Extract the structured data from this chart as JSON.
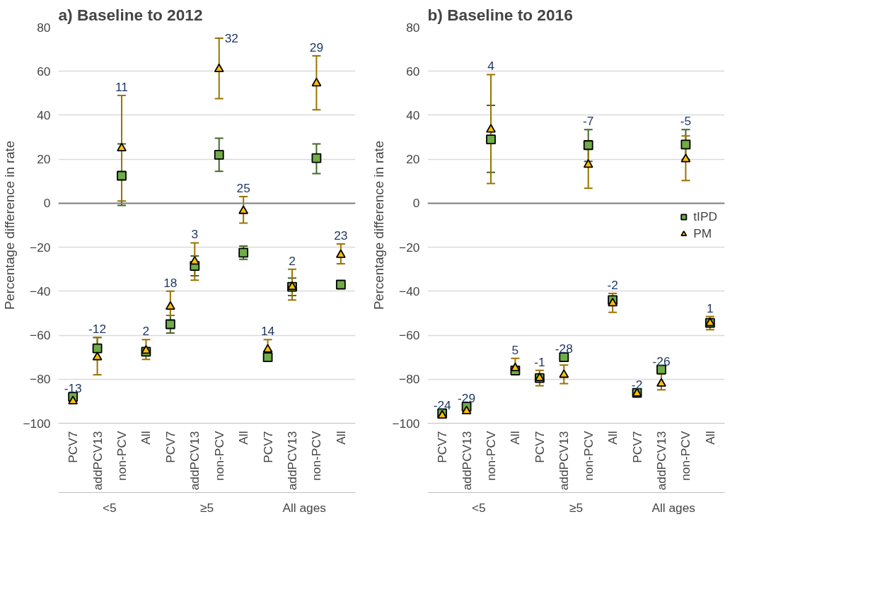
{
  "chart_data": [
    {
      "type": "scatter",
      "title": "a) Baseline to 2012",
      "ylabel": "Percentage difference in rate",
      "categories": [
        "PCV7",
        "addPCV13",
        "non-PCV",
        "All",
        "PCV7",
        "addPCV13",
        "non-PCV",
        "All",
        "PCV7",
        "addPCV13",
        "non-PCV",
        "All"
      ],
      "series": [
        {
          "color": "#70ad47",
          "marker": "square",
          "values": [
            -88,
            -66,
            12.5,
            -67.5,
            -55,
            -28.5,
            22,
            -22.5,
            -70,
            -38,
            20.5,
            -37
          ],
          "errors": [
            null,
            [
              -71,
              -61
            ],
            [
              -1,
              27
            ],
            null,
            [
              -59,
              -51
            ],
            [
              -33,
              -24
            ],
            [
              14.5,
              29.5
            ],
            [
              -25.5,
              -19.5
            ],
            null,
            [
              -42,
              -34
            ],
            [
              13.5,
              27
            ],
            null
          ]
        },
        {
          "color": "#ffc000",
          "marker": "triangle",
          "values": [
            -90,
            -70,
            25,
            -67,
            -47,
            -26.5,
            61,
            -3.5,
            -66.5,
            -38,
            54.5,
            -23.5
          ],
          "errors": [
            null,
            [
              -78,
              -61
            ],
            [
              1,
              49
            ],
            [
              -71,
              -62
            ],
            [
              -51,
              -40
            ],
            [
              -35,
              -18
            ],
            [
              47.5,
              75
            ],
            [
              -9,
              3
            ],
            [
              -68,
              -62
            ],
            [
              -44,
              -30
            ],
            [
              42.5,
              67
            ],
            [
              -27.5,
              -18.5
            ]
          ]
        }
      ],
      "annotations": [
        "-13",
        "-12",
        "11",
        "2",
        "18",
        "3",
        "32",
        "25",
        "14",
        "2",
        "29",
        "23",
        "<5",
        "≥5",
        "All ages"
      ],
      "ylim": [
        -100,
        80
      ],
      "yticks": [
        -100,
        -80,
        -60,
        -40,
        -20,
        0,
        20,
        40,
        60,
        80
      ],
      "grid": "y",
      "ref_lines": [
        {
          "axis": "y",
          "value": 0,
          "color": "#808080"
        }
      ]
    },
    {
      "type": "scatter",
      "title": "b) Baseline to 2016",
      "ylabel": "Percentage difference in rate",
      "categories": [
        "PCV7",
        "addPCV13",
        "non-PCV",
        "All",
        "PCV7",
        "addPCV13",
        "non-PCV",
        "All",
        "PCV7",
        "addPCV13",
        "non-PCV",
        "All"
      ],
      "series": [
        {
          "name": "tIPD",
          "color": "#70ad47",
          "marker": "square",
          "values": [
            -95.5,
            -92.5,
            29,
            -76,
            -79.5,
            -70,
            26.4,
            -44,
            -86.2,
            -75.6,
            26.7,
            -54.4
          ],
          "errors": [
            null,
            null,
            [
              14,
              44.5
            ],
            null,
            null,
            null,
            [
              19,
              33.5
            ],
            null,
            null,
            null,
            [
              20,
              33.5
            ],
            null
          ]
        },
        {
          "name": "PM",
          "color": "#ffc000",
          "marker": "triangle",
          "values": [
            -96.5,
            -94.5,
            33.5,
            -75,
            -79.5,
            -78,
            17.5,
            -45.5,
            -86.5,
            -82,
            20,
            -54.5
          ],
          "errors": [
            null,
            null,
            [
              9,
              58.5
            ],
            [
              -78,
              -70.5
            ],
            [
              -83,
              -76
            ],
            [
              -82,
              -73.6
            ],
            [
              6.8,
              28.4
            ],
            [
              -49.6,
              -41
            ],
            null,
            [
              -84.8,
              -77.6
            ],
            [
              10.3,
              30.6
            ],
            [
              -57.5,
              -51.5
            ]
          ]
        }
      ],
      "annotations": [
        "-24",
        "-29",
        "4",
        "5",
        "-1",
        "-28",
        "-7",
        "-2",
        "-2",
        "-26",
        "-5",
        "1",
        "<5",
        "≥5",
        "All ages"
      ],
      "ylim": [
        -100,
        80
      ],
      "yticks": [
        -100,
        -80,
        -60,
        -40,
        -20,
        0,
        20,
        40,
        60,
        80
      ],
      "grid": "y",
      "legend": "right",
      "ref_lines": [
        {
          "axis": "y",
          "value": 0,
          "color": "#808080"
        }
      ]
    }
  ]
}
